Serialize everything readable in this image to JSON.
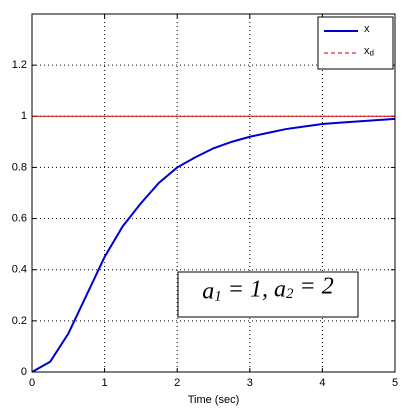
{
  "chart_data": {
    "type": "line",
    "xlabel": "Time (sec)",
    "annotation": "a_1 = 1, a_2 = 2",
    "x": [
      0,
      0.25,
      0.5,
      0.75,
      1,
      1.25,
      1.5,
      1.75,
      2,
      2.25,
      2.5,
      2.75,
      3,
      3.25,
      3.5,
      3.75,
      4,
      4.25,
      4.5,
      4.75,
      5
    ],
    "series": [
      {
        "name": "x",
        "color": "#0000cc",
        "values": [
          0,
          0.04,
          0.15,
          0.3,
          0.45,
          0.57,
          0.66,
          0.74,
          0.8,
          0.84,
          0.875,
          0.9,
          0.92,
          0.935,
          0.95,
          0.96,
          0.97,
          0.975,
          0.98,
          0.985,
          0.99
        ]
      },
      {
        "name": "x_d",
        "color": "#cc0000",
        "values": [
          1,
          1,
          1,
          1,
          1,
          1,
          1,
          1,
          1,
          1,
          1,
          1,
          1,
          1,
          1,
          1,
          1,
          1,
          1,
          1,
          1
        ]
      }
    ],
    "xlim": [
      0,
      5
    ],
    "xticks": [
      0,
      1,
      2,
      3,
      4,
      5
    ],
    "ylim": [
      0,
      1.4
    ],
    "yticks": [
      0,
      0.2,
      0.4,
      0.6,
      0.8,
      1,
      1.2
    ],
    "grid": true
  }
}
